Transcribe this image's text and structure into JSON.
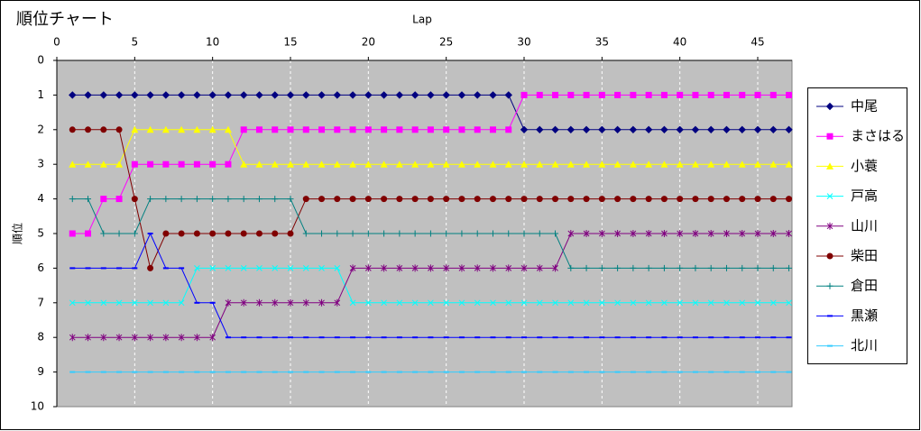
{
  "chart_data": {
    "type": "line",
    "title": "順位チャート",
    "x_label": "Lap",
    "y_label": "順位",
    "x": [
      1,
      2,
      3,
      4,
      5,
      6,
      7,
      8,
      9,
      10,
      11,
      12,
      13,
      14,
      15,
      16,
      17,
      18,
      19,
      20,
      21,
      22,
      23,
      24,
      25,
      26,
      27,
      28,
      29,
      30,
      31,
      32,
      33,
      34,
      35,
      36,
      37,
      38,
      39,
      40,
      41,
      42,
      43,
      44,
      45,
      46,
      47
    ],
    "xlim": [
      0,
      47.2
    ],
    "xticks": [
      0,
      5,
      10,
      15,
      20,
      25,
      30,
      35,
      40,
      45
    ],
    "ylim": [
      0,
      10
    ],
    "yticks": [
      0,
      1,
      2,
      3,
      4,
      5,
      6,
      7,
      8,
      9,
      10
    ],
    "y_reversed": true,
    "x_axis_position": "top",
    "grid": "x",
    "plot_background": "#c0c0c0",
    "legend": "right",
    "series": [
      {
        "name": "中尾",
        "color": "#000080",
        "marker": "diamond",
        "values": [
          1,
          1,
          1,
          1,
          1,
          1,
          1,
          1,
          1,
          1,
          1,
          1,
          1,
          1,
          1,
          1,
          1,
          1,
          1,
          1,
          1,
          1,
          1,
          1,
          1,
          1,
          1,
          1,
          1,
          2,
          2,
          2,
          2,
          2,
          2,
          2,
          2,
          2,
          2,
          2,
          2,
          2,
          2,
          2,
          2,
          2,
          2
        ]
      },
      {
        "name": "まさはる",
        "color": "#ff00ff",
        "marker": "square",
        "values": [
          5,
          5,
          4,
          4,
          3,
          3,
          3,
          3,
          3,
          3,
          3,
          2,
          2,
          2,
          2,
          2,
          2,
          2,
          2,
          2,
          2,
          2,
          2,
          2,
          2,
          2,
          2,
          2,
          2,
          1,
          1,
          1,
          1,
          1,
          1,
          1,
          1,
          1,
          1,
          1,
          1,
          1,
          1,
          1,
          1,
          1,
          1
        ]
      },
      {
        "name": "小蓑",
        "color": "#ffff00",
        "marker": "triangle",
        "values": [
          3,
          3,
          3,
          3,
          2,
          2,
          2,
          2,
          2,
          2,
          2,
          3,
          3,
          3,
          3,
          3,
          3,
          3,
          3,
          3,
          3,
          3,
          3,
          3,
          3,
          3,
          3,
          3,
          3,
          3,
          3,
          3,
          3,
          3,
          3,
          3,
          3,
          3,
          3,
          3,
          3,
          3,
          3,
          3,
          3,
          3,
          3
        ]
      },
      {
        "name": "戸高",
        "color": "#00ffff",
        "marker": "x",
        "values": [
          7,
          7,
          7,
          7,
          7,
          7,
          7,
          7,
          6,
          6,
          6,
          6,
          6,
          6,
          6,
          6,
          6,
          6,
          7,
          7,
          7,
          7,
          7,
          7,
          7,
          7,
          7,
          7,
          7,
          7,
          7,
          7,
          7,
          7,
          7,
          7,
          7,
          7,
          7,
          7,
          7,
          7,
          7,
          7,
          7,
          7,
          7
        ]
      },
      {
        "name": "山川",
        "color": "#800080",
        "marker": "star",
        "values": [
          8,
          8,
          8,
          8,
          8,
          8,
          8,
          8,
          8,
          8,
          7,
          7,
          7,
          7,
          7,
          7,
          7,
          7,
          6,
          6,
          6,
          6,
          6,
          6,
          6,
          6,
          6,
          6,
          6,
          6,
          6,
          6,
          5,
          5,
          5,
          5,
          5,
          5,
          5,
          5,
          5,
          5,
          5,
          5,
          5,
          5,
          5
        ]
      },
      {
        "name": "柴田",
        "color": "#800000",
        "marker": "circle",
        "values": [
          2,
          2,
          2,
          2,
          4,
          6,
          5,
          5,
          5,
          5,
          5,
          5,
          5,
          5,
          5,
          4,
          4,
          4,
          4,
          4,
          4,
          4,
          4,
          4,
          4,
          4,
          4,
          4,
          4,
          4,
          4,
          4,
          4,
          4,
          4,
          4,
          4,
          4,
          4,
          4,
          4,
          4,
          4,
          4,
          4,
          4,
          4
        ]
      },
      {
        "name": "倉田",
        "color": "#008080",
        "marker": "plus",
        "values": [
          4,
          4,
          5,
          5,
          5,
          4,
          4,
          4,
          4,
          4,
          4,
          4,
          4,
          4,
          4,
          5,
          5,
          5,
          5,
          5,
          5,
          5,
          5,
          5,
          5,
          5,
          5,
          5,
          5,
          5,
          5,
          5,
          6,
          6,
          6,
          6,
          6,
          6,
          6,
          6,
          6,
          6,
          6,
          6,
          6,
          6,
          6
        ]
      },
      {
        "name": "黒瀬",
        "color": "#0000ff",
        "marker": "dash",
        "values": [
          6,
          6,
          6,
          6,
          6,
          5,
          6,
          6,
          7,
          7,
          8,
          8,
          8,
          8,
          8,
          8,
          8,
          8,
          8,
          8,
          8,
          8,
          8,
          8,
          8,
          8,
          8,
          8,
          8,
          8,
          8,
          8,
          8,
          8,
          8,
          8,
          8,
          8,
          8,
          8,
          8,
          8,
          8,
          8,
          8,
          8,
          8
        ]
      },
      {
        "name": "北川",
        "color": "#33ccff",
        "marker": "dash",
        "values": [
          9,
          9,
          9,
          9,
          9,
          9,
          9,
          9,
          9,
          9,
          9,
          9,
          9,
          9,
          9,
          9,
          9,
          9,
          9,
          9,
          9,
          9,
          9,
          9,
          9,
          9,
          9,
          9,
          9,
          9,
          9,
          9,
          9,
          9,
          9,
          9,
          9,
          9,
          9,
          9,
          9,
          9,
          9,
          9,
          9,
          9,
          9
        ]
      }
    ]
  }
}
